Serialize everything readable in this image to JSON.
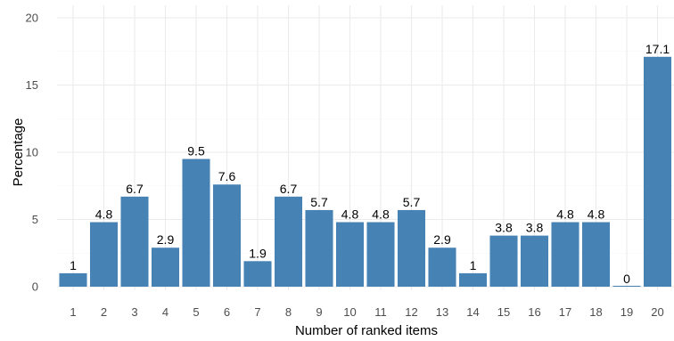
{
  "chart_data": {
    "type": "bar",
    "categories": [
      "1",
      "2",
      "3",
      "4",
      "5",
      "6",
      "7",
      "8",
      "9",
      "10",
      "11",
      "12",
      "13",
      "14",
      "15",
      "16",
      "17",
      "18",
      "19",
      "20"
    ],
    "values": [
      1,
      4.8,
      6.7,
      2.9,
      9.5,
      7.6,
      1.9,
      6.7,
      5.7,
      4.8,
      4.8,
      5.7,
      2.9,
      1,
      3.8,
      3.8,
      4.8,
      4.8,
      0,
      17.1
    ],
    "data_labels": [
      "1",
      "4.8",
      "6.7",
      "2.9",
      "9.5",
      "7.6",
      "1.9",
      "6.7",
      "5.7",
      "4.8",
      "4.8",
      "5.7",
      "2.9",
      "1",
      "3.8",
      "3.8",
      "4.8",
      "4.8",
      "0",
      "17.1"
    ],
    "xlabel": "Number of ranked items",
    "ylabel": "Percentage",
    "ylim": [
      0,
      20
    ],
    "yticks": [
      "0",
      "5",
      "10",
      "15",
      "20"
    ],
    "grid": true,
    "bar_color": "#4682b4",
    "grid_color": "#ebebeb"
  }
}
